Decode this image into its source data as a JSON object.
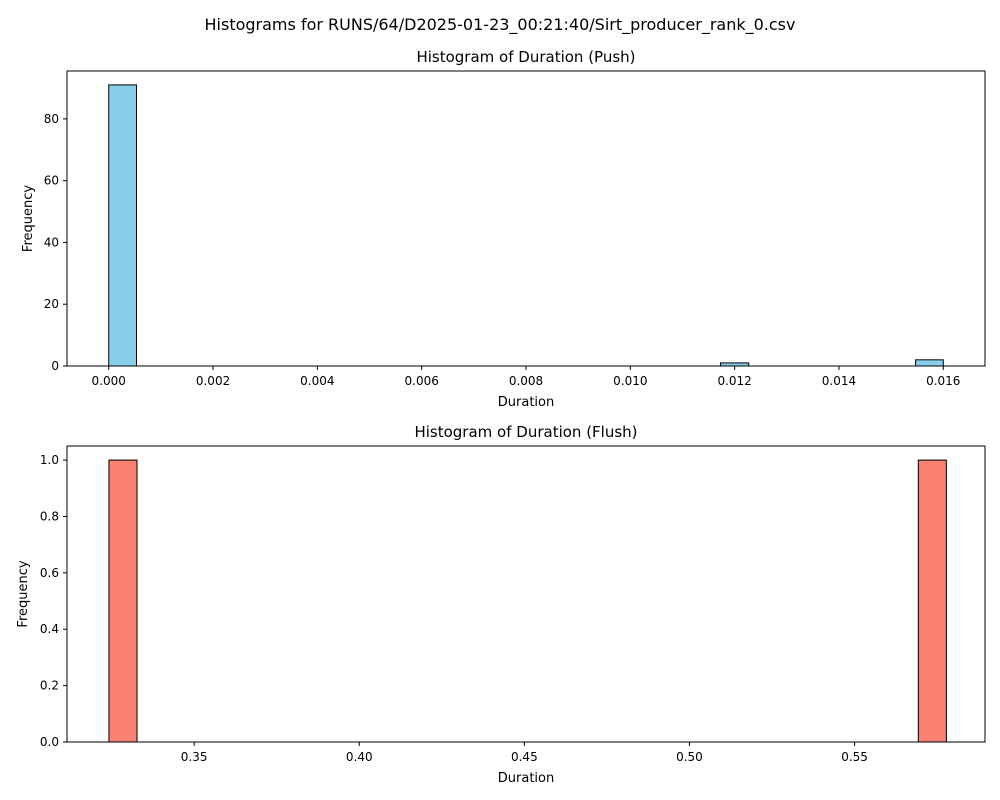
{
  "figure": {
    "suptitle": "Histograms for RUNS/64/D2025-01-23_00:21:40/Sirt_producer_rank_0.csv"
  },
  "chart_data": [
    {
      "type": "bar",
      "title": "Histogram of Duration (Push)",
      "xlabel": "Duration",
      "ylabel": "Frequency",
      "bar_color": "#87CEEB",
      "edge_color": "#000000",
      "xlim": [
        -0.0008,
        0.0168
      ],
      "ylim": [
        0,
        95.5
      ],
      "xticks": [
        0.0,
        0.002,
        0.004,
        0.006,
        0.008,
        0.01,
        0.012,
        0.014,
        0.016
      ],
      "xtick_labels": [
        "0.000",
        "0.002",
        "0.004",
        "0.006",
        "0.008",
        "0.010",
        "0.012",
        "0.014",
        "0.016"
      ],
      "yticks": [
        0,
        20,
        40,
        60,
        80
      ],
      "ytick_labels": [
        "0",
        "20",
        "40",
        "60",
        "80"
      ],
      "bins": [
        {
          "x0": 0.0,
          "x1": 0.000533,
          "value": 91
        },
        {
          "x0": 0.01173,
          "x1": 0.01227,
          "value": 1
        },
        {
          "x0": 0.01547,
          "x1": 0.016,
          "value": 2
        }
      ]
    },
    {
      "type": "bar",
      "title": "Histogram of Duration (Flush)",
      "xlabel": "Duration",
      "ylabel": "Frequency",
      "bar_color": "#FA8072",
      "edge_color": "#000000",
      "xlim": [
        0.3115,
        0.5895
      ],
      "ylim": [
        0,
        1.05
      ],
      "xticks": [
        0.35,
        0.4,
        0.45,
        0.5,
        0.55
      ],
      "xtick_labels": [
        "0.35",
        "0.40",
        "0.45",
        "0.50",
        "0.55"
      ],
      "yticks": [
        0.0,
        0.2,
        0.4,
        0.6,
        0.8,
        1.0
      ],
      "ytick_labels": [
        "0.0",
        "0.2",
        "0.4",
        "0.6",
        "0.8",
        "1.0"
      ],
      "bins": [
        {
          "x0": 0.3242,
          "x1": 0.3327,
          "value": 1
        },
        {
          "x0": 0.5693,
          "x1": 0.5778,
          "value": 1
        }
      ]
    }
  ]
}
